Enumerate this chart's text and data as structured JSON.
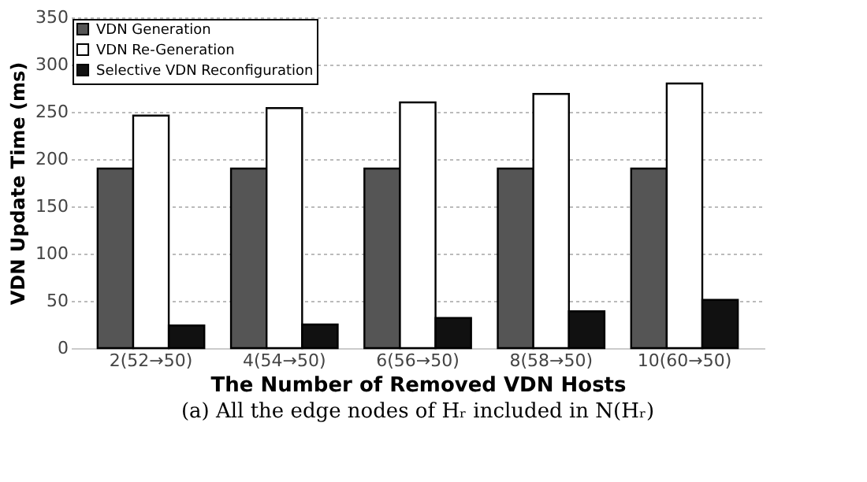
{
  "chart_data": {
    "type": "bar",
    "xlabel": "The Number of Removed VDN Hosts",
    "ylabel": "VDN Update Time (ms)",
    "categories": [
      "2(52→50)",
      "4(54→50)",
      "6(56→50)",
      "8(58→50)",
      "10(60→50)"
    ],
    "series": [
      {
        "name": "VDN Generation",
        "color": "#555555",
        "values": [
          190,
          190,
          190,
          190,
          190
        ]
      },
      {
        "name": "VDN Re-Generation",
        "color": "#ffffff",
        "values": [
          246,
          254,
          260,
          269,
          280
        ]
      },
      {
        "name": "Selective VDN Reconfiguration",
        "color": "#111111",
        "values": [
          24,
          25,
          32,
          39,
          51
        ]
      }
    ],
    "ylim": [
      0,
      350
    ],
    "yticks": [
      0,
      50,
      100,
      150,
      200,
      250,
      300,
      350
    ],
    "grid": "y",
    "legend": "top left",
    "annotations": [
      "(a) All the edge nodes of Hᵣ included in N(Hᵣ)"
    ]
  }
}
